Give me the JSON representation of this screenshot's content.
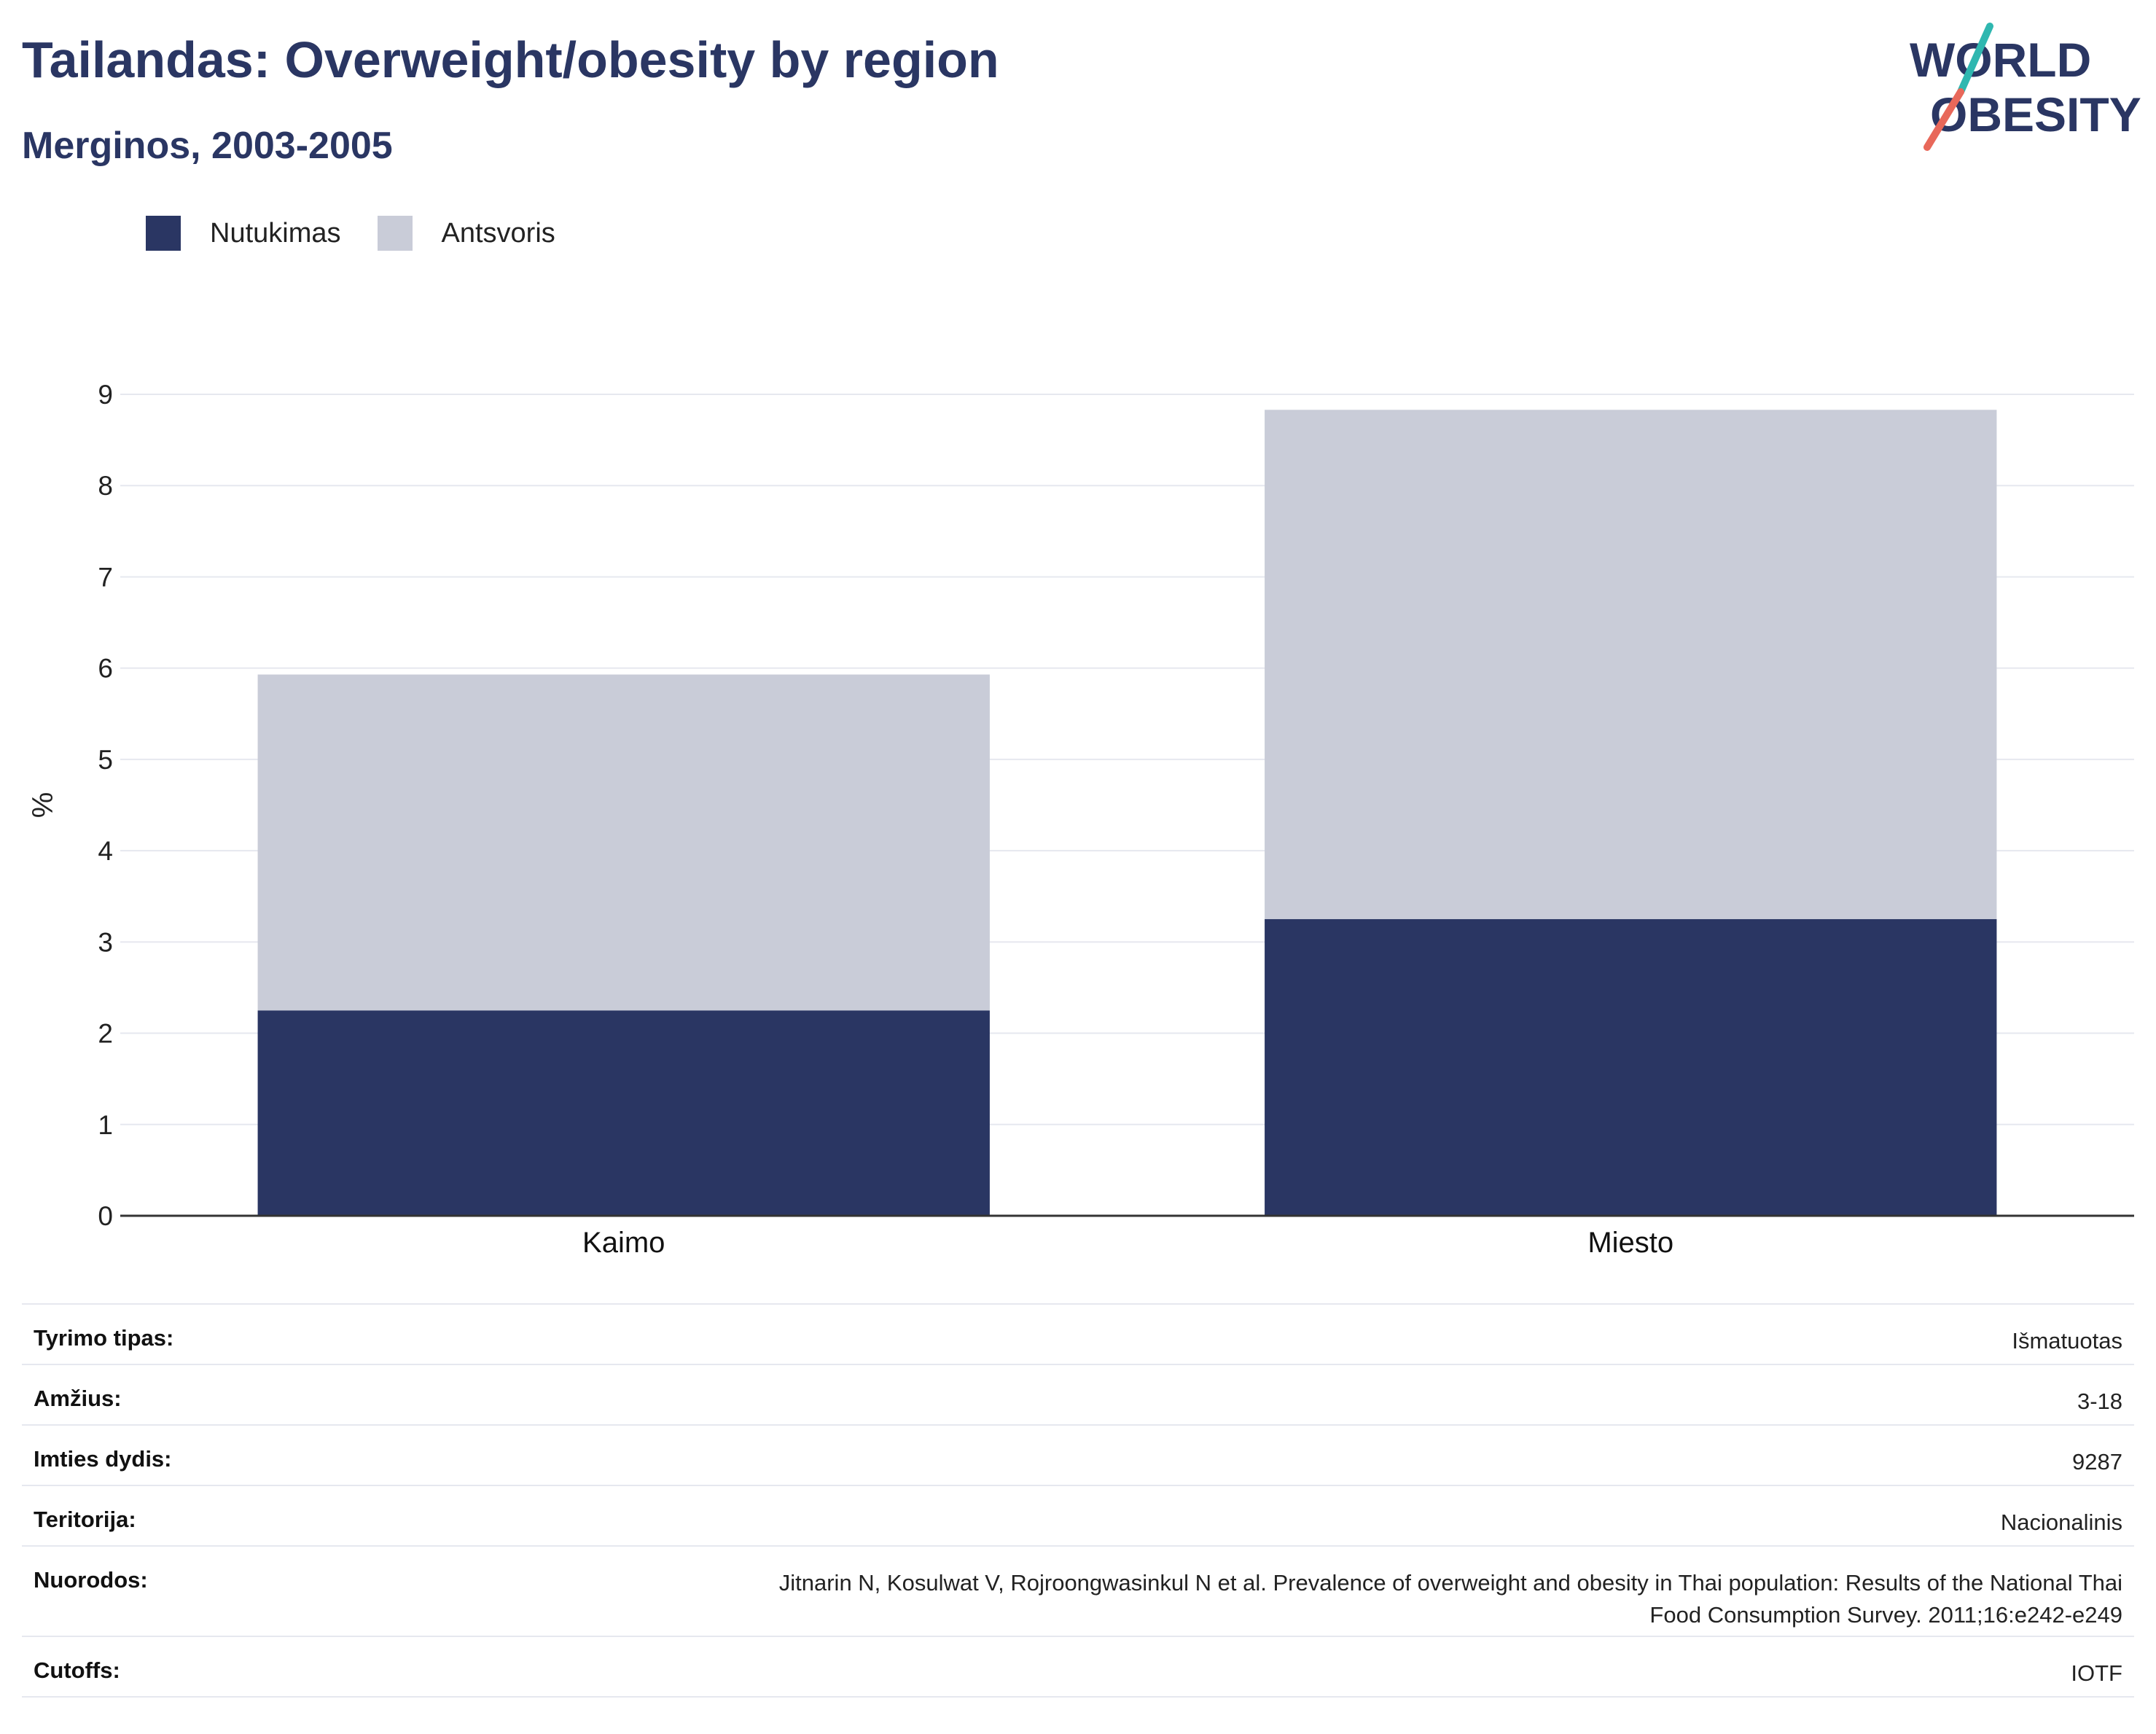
{
  "header": {
    "title": "Tailandas: Overweight/obesity by region",
    "subtitle": "Merginos, 2003-2005"
  },
  "logo": {
    "line1": "WORLD",
    "line2": "OBESITY"
  },
  "chart_data": {
    "type": "bar",
    "stacked": true,
    "categories": [
      "Kaimo",
      "Miesto"
    ],
    "series": [
      {
        "name": "Nutukimas",
        "values": [
          2.25,
          3.25
        ],
        "color": "#2a3663"
      },
      {
        "name": "Antsvoris",
        "values": [
          3.68,
          5.58
        ],
        "color": "#c9ccd8"
      }
    ],
    "ylabel": "%",
    "ylim": [
      0,
      9
    ],
    "yticks": [
      0,
      1,
      2,
      3,
      4,
      5,
      6,
      7,
      8,
      9
    ],
    "grid": true,
    "legend_position": "top-left"
  },
  "info": [
    {
      "key": "Tyrimo tipas:",
      "value": "Išmatuotas"
    },
    {
      "key": "Amžius:",
      "value": "3-18"
    },
    {
      "key": "Imties dydis:",
      "value": "9287"
    },
    {
      "key": "Teritorija:",
      "value": "Nacionalinis"
    },
    {
      "key": "Nuorodos:",
      "value": "Jitnarin N, Kosulwat V, Rojroongwasinkul N et al. Prevalence of overweight and obesity in Thai population: Results of the National Thai Food Consumption Survey. 2011;16:e242-e249"
    },
    {
      "key": "Cutoffs:",
      "value": "IOTF"
    }
  ]
}
